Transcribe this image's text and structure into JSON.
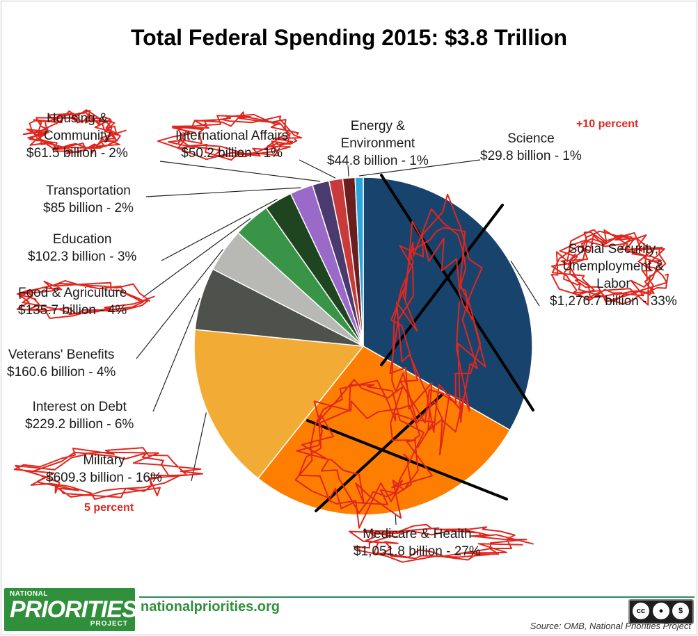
{
  "chart_data": {
    "type": "pie",
    "title": "Total Federal Spending 2015: $3.8 Trillion",
    "unit": "billion",
    "slices": [
      {
        "name": "Social Security, Unemployment & Labor",
        "value": 1276.7,
        "label_lines": [
          "Social Security,",
          "Unemployment &",
          "Labor"
        ],
        "value_text": "$1,276.7 billion - 33%",
        "color": "#17436d"
      },
      {
        "name": "Medicare & Health",
        "value": 1051.8,
        "label_lines": [
          "Medicare & Health"
        ],
        "value_text": "$1,051.8 billion - 27%",
        "color": "#fd7e00"
      },
      {
        "name": "Military",
        "value": 609.3,
        "label_lines": [
          "Military"
        ],
        "value_text": "$609.3 billion - 16%",
        "color": "#f2ab35"
      },
      {
        "name": "Interest on Debt",
        "value": 229.2,
        "label_lines": [
          "Interest on Debt"
        ],
        "value_text": "$229.2 billion - 6%",
        "color": "#4f514d"
      },
      {
        "name": "Veterans' Benefits",
        "value": 160.6,
        "label_lines": [
          "Veterans' Benefits"
        ],
        "value_text": "$160.6 billion - 4%",
        "color": "#b8b8b5"
      },
      {
        "name": "Food & Agriculture",
        "value": 135.7,
        "label_lines": [
          "Food & Agriculture"
        ],
        "value_text": "$135.7 billion - 4%",
        "color": "#3a9447"
      },
      {
        "name": "Education",
        "value": 102.3,
        "label_lines": [
          "Education"
        ],
        "value_text": "$102.3 billion - 3%",
        "color": "#1f4420"
      },
      {
        "name": "Transportation",
        "value": 85,
        "label_lines": [
          "Transportation"
        ],
        "value_text": "$85 billion - 2%",
        "color": "#9a6ac8"
      },
      {
        "name": "Housing & Community",
        "value": 61.5,
        "label_lines": [
          "Housing &",
          "Community"
        ],
        "value_text": "$61.5 billion - 2%",
        "color": "#4a3a6e"
      },
      {
        "name": "International Affairs",
        "value": 50.2,
        "label_lines": [
          "International Affairs"
        ],
        "value_text": "$50.2 billion - 1%",
        "color": "#c93a3a"
      },
      {
        "name": "Energy & Environment",
        "value": 44.8,
        "label_lines": [
          "Energy &",
          "Environment"
        ],
        "value_text": "$44.8 billion - 1%",
        "color": "#6a1f1f"
      },
      {
        "name": "Science",
        "value": 29.8,
        "label_lines": [
          "Science"
        ],
        "value_text": "$29.8 billion - 1%",
        "color": "#26a6dc"
      }
    ]
  },
  "annotations": {
    "plus_ten": "+10 percent",
    "five_percent": "5 percent"
  },
  "footer": {
    "logo_top": "NATIONAL",
    "logo_main": "PRIORITIES",
    "logo_bottom": "PROJECT",
    "site": "nationalpriorities.org",
    "license_by": "BY",
    "license_nc": "NC",
    "source": "Source: OMB, National Priorities Project"
  }
}
